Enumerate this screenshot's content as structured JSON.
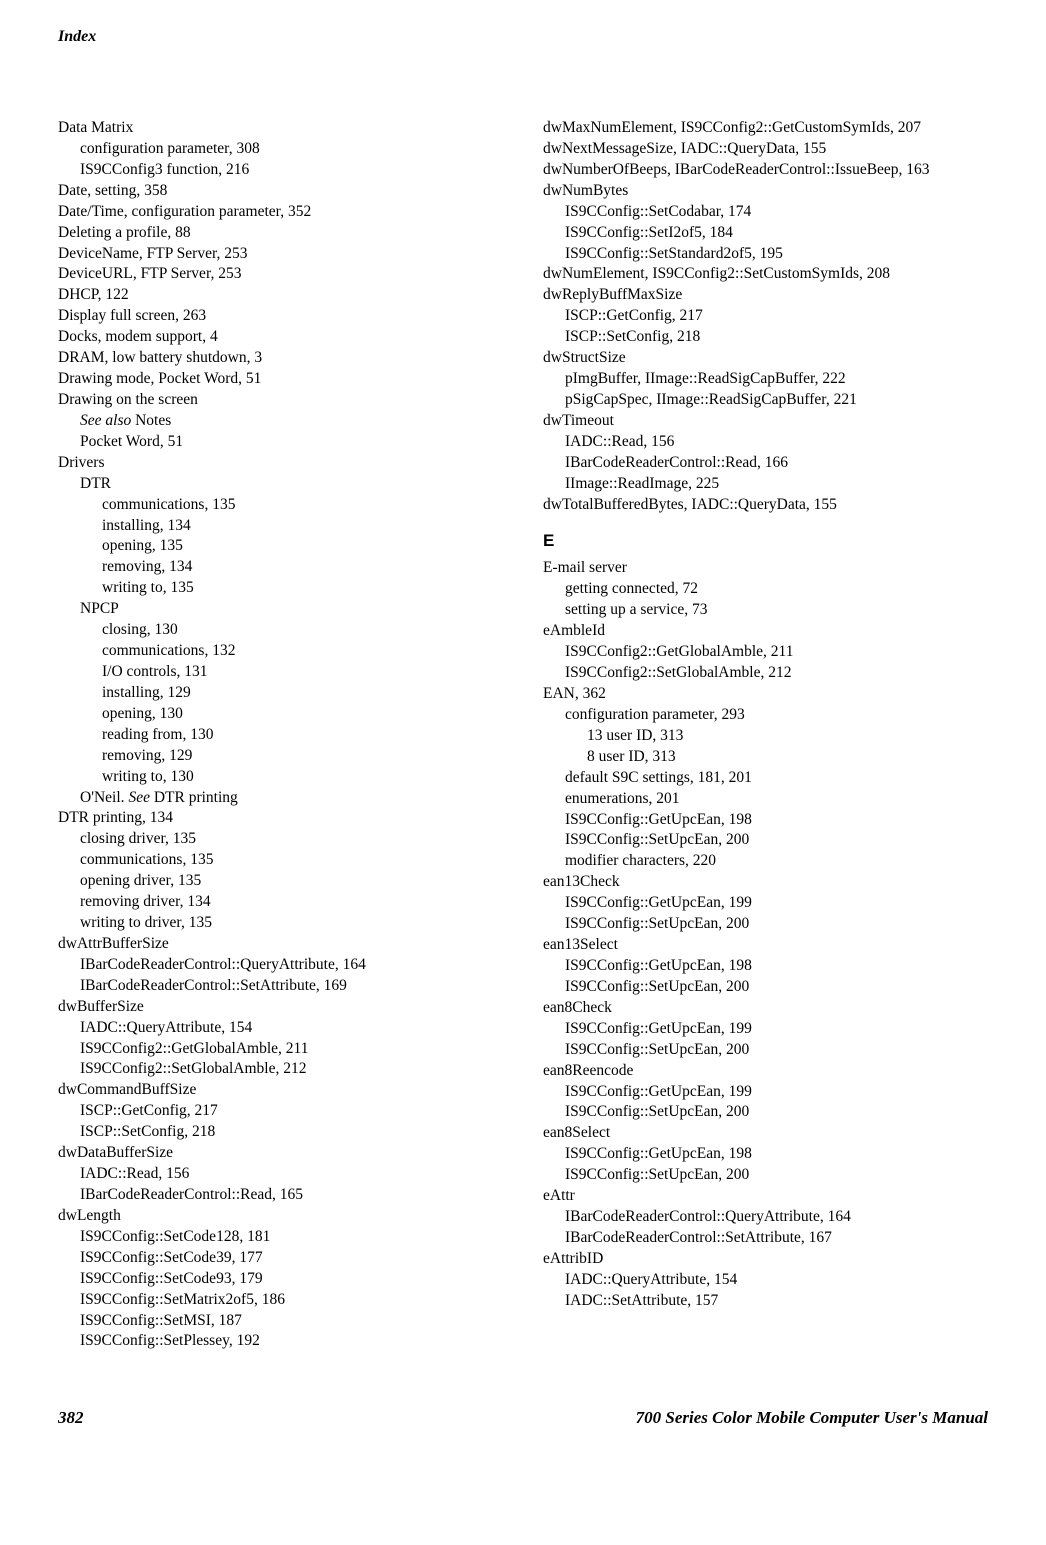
{
  "header": {
    "title": "Index"
  },
  "footer": {
    "page_number": "382",
    "title": "700 Series Color Mobile Computer User's Manual"
  },
  "left_column": [
    {
      "t": "Data Matrix",
      "l": 0
    },
    {
      "t": "configuration parameter, 308",
      "l": 1
    },
    {
      "t": "IS9CConfig3 function, 216",
      "l": 1
    },
    {
      "t": "Date, setting, 358",
      "l": 0
    },
    {
      "t": "Date/Time, configuration parameter, 352",
      "l": 0
    },
    {
      "t": "Deleting a profile, 88",
      "l": 0
    },
    {
      "t": "DeviceName, FTP Server, 253",
      "l": 0
    },
    {
      "t": "DeviceURL, FTP Server, 253",
      "l": 0
    },
    {
      "t": "DHCP, 122",
      "l": 0
    },
    {
      "t": "Display full screen, 263",
      "l": 0
    },
    {
      "t": "Docks, modem support, 4",
      "l": 0
    },
    {
      "t": "DRAM, low battery shutdown, 3",
      "l": 0
    },
    {
      "t": "Drawing mode, Pocket Word, 51",
      "l": 0
    },
    {
      "t": "Drawing on the screen",
      "l": 0
    },
    {
      "t_html": "<span class=\"italic\">See also</span> Notes",
      "l": 1
    },
    {
      "t": "Pocket Word, 51",
      "l": 1
    },
    {
      "t": "Drivers",
      "l": 0
    },
    {
      "t": "DTR",
      "l": 1
    },
    {
      "t": "communications, 135",
      "l": 2
    },
    {
      "t": "installing, 134",
      "l": 2
    },
    {
      "t": "opening, 135",
      "l": 2
    },
    {
      "t": "removing, 134",
      "l": 2
    },
    {
      "t": "writing to, 135",
      "l": 2
    },
    {
      "t": "NPCP",
      "l": 1
    },
    {
      "t": "closing, 130",
      "l": 2
    },
    {
      "t": "communications, 132",
      "l": 2
    },
    {
      "t": "I/O controls, 131",
      "l": 2
    },
    {
      "t": "installing, 129",
      "l": 2
    },
    {
      "t": "opening, 130",
      "l": 2
    },
    {
      "t": "reading from, 130",
      "l": 2
    },
    {
      "t": "removing, 129",
      "l": 2
    },
    {
      "t": "writing to, 130",
      "l": 2
    },
    {
      "t_html": "O'Neil. <span class=\"italic\">See</span> DTR printing",
      "l": 1
    },
    {
      "t": "DTR printing, 134",
      "l": 0
    },
    {
      "t": "closing driver, 135",
      "l": 1
    },
    {
      "t": "communications, 135",
      "l": 1
    },
    {
      "t": "opening driver, 135",
      "l": 1
    },
    {
      "t": "removing driver, 134",
      "l": 1
    },
    {
      "t": "writing to driver, 135",
      "l": 1
    },
    {
      "t": "dwAttrBufferSize",
      "l": 0
    },
    {
      "t": "IBarCodeReaderControl::QueryAttribute, 164",
      "l": 1
    },
    {
      "t": "IBarCodeReaderControl::SetAttribute, 169",
      "l": 1
    },
    {
      "t": "dwBufferSize",
      "l": 0
    },
    {
      "t": "IADC::QueryAttribute, 154",
      "l": 1
    },
    {
      "t": "IS9CConfig2::GetGlobalAmble, 211",
      "l": 1
    },
    {
      "t": "IS9CConfig2::SetGlobalAmble, 212",
      "l": 1
    },
    {
      "t": "dwCommandBuffSize",
      "l": 0
    },
    {
      "t": "ISCP::GetConfig, 217",
      "l": 1
    },
    {
      "t": "ISCP::SetConfig, 218",
      "l": 1
    },
    {
      "t": "dwDataBufferSize",
      "l": 0
    },
    {
      "t": "IADC::Read, 156",
      "l": 1
    },
    {
      "t": "IBarCodeReaderControl::Read, 165",
      "l": 1
    },
    {
      "t": "dwLength",
      "l": 0
    },
    {
      "t": "IS9CConfig::SetCode128, 181",
      "l": 1
    },
    {
      "t": "IS9CConfig::SetCode39, 177",
      "l": 1
    },
    {
      "t": "IS9CConfig::SetCode93, 179",
      "l": 1
    },
    {
      "t": "IS9CConfig::SetMatrix2of5, 186",
      "l": 1
    },
    {
      "t": "IS9CConfig::SetMSI, 187",
      "l": 1
    },
    {
      "t": "IS9CConfig::SetPlessey, 192",
      "l": 1
    }
  ],
  "right_column": [
    {
      "t": "dwMaxNumElement, IS9CConfig2::GetCustomSymIds, 207",
      "l": 0,
      "hang": true
    },
    {
      "t": "dwNextMessageSize, IADC::QueryData, 155",
      "l": 0
    },
    {
      "t": "dwNumberOfBeeps, IBarCodeReaderControl::IssueBeep, 163",
      "l": 0,
      "hang": true
    },
    {
      "t": "dwNumBytes",
      "l": 0
    },
    {
      "t": "IS9CConfig::SetCodabar, 174",
      "l": 1
    },
    {
      "t": "IS9CConfig::SetI2of5, 184",
      "l": 1
    },
    {
      "t": "IS9CConfig::SetStandard2of5, 195",
      "l": 1
    },
    {
      "t": "dwNumElement, IS9CConfig2::SetCustomSymIds, 208",
      "l": 0
    },
    {
      "t": "dwReplyBuffMaxSize",
      "l": 0
    },
    {
      "t": "ISCP::GetConfig, 217",
      "l": 1
    },
    {
      "t": "ISCP::SetConfig, 218",
      "l": 1
    },
    {
      "t": "dwStructSize",
      "l": 0
    },
    {
      "t": "pImgBuffer, IImage::ReadSigCapBuffer, 222",
      "l": 1
    },
    {
      "t": "pSigCapSpec, IImage::ReadSigCapBuffer, 221",
      "l": 1
    },
    {
      "t": "dwTimeout",
      "l": 0
    },
    {
      "t": "IADC::Read, 156",
      "l": 1
    },
    {
      "t": "IBarCodeReaderControl::Read, 166",
      "l": 1
    },
    {
      "t": "IImage::ReadImage, 225",
      "l": 1
    },
    {
      "t": "dwTotalBufferedBytes, IADC::QueryData, 155",
      "l": 0
    },
    {
      "section": "E"
    },
    {
      "t": "E-mail server",
      "l": 0
    },
    {
      "t": "getting connected, 72",
      "l": 1
    },
    {
      "t": "setting up a service, 73",
      "l": 1
    },
    {
      "t": "eAmbleId",
      "l": 0
    },
    {
      "t": "IS9CConfig2::GetGlobalAmble, 211",
      "l": 1
    },
    {
      "t": "IS9CConfig2::SetGlobalAmble, 212",
      "l": 1
    },
    {
      "t": "EAN, 362",
      "l": 0
    },
    {
      "t": "configuration parameter, 293",
      "l": 1
    },
    {
      "t": "13 user ID, 313",
      "l": 2
    },
    {
      "t": "8 user ID, 313",
      "l": 2
    },
    {
      "t": "default S9C settings, 181, 201",
      "l": 1
    },
    {
      "t": "enumerations, 201",
      "l": 1
    },
    {
      "t": "IS9CConfig::GetUpcEan, 198",
      "l": 1
    },
    {
      "t": "IS9CConfig::SetUpcEan, 200",
      "l": 1
    },
    {
      "t": "modifier characters, 220",
      "l": 1
    },
    {
      "t": "ean13Check",
      "l": 0
    },
    {
      "t": "IS9CConfig::GetUpcEan, 199",
      "l": 1
    },
    {
      "t": "IS9CConfig::SetUpcEan, 200",
      "l": 1
    },
    {
      "t": "ean13Select",
      "l": 0
    },
    {
      "t": "IS9CConfig::GetUpcEan, 198",
      "l": 1
    },
    {
      "t": "IS9CConfig::SetUpcEan, 200",
      "l": 1
    },
    {
      "t": "ean8Check",
      "l": 0
    },
    {
      "t": "IS9CConfig::GetUpcEan, 199",
      "l": 1
    },
    {
      "t": "IS9CConfig::SetUpcEan, 200",
      "l": 1
    },
    {
      "t": "ean8Reencode",
      "l": 0
    },
    {
      "t": "IS9CConfig::GetUpcEan, 199",
      "l": 1
    },
    {
      "t": "IS9CConfig::SetUpcEan, 200",
      "l": 1
    },
    {
      "t": "ean8Select",
      "l": 0
    },
    {
      "t": "IS9CConfig::GetUpcEan, 198",
      "l": 1
    },
    {
      "t": "IS9CConfig::SetUpcEan, 200",
      "l": 1
    },
    {
      "t": "eAttr",
      "l": 0
    },
    {
      "t": "IBarCodeReaderControl::QueryAttribute, 164",
      "l": 1
    },
    {
      "t": "IBarCodeReaderControl::SetAttribute, 167",
      "l": 1
    },
    {
      "t": "eAttribID",
      "l": 0
    },
    {
      "t": "IADC::QueryAttribute, 154",
      "l": 1
    },
    {
      "t": "IADC::SetAttribute, 157",
      "l": 1
    }
  ]
}
